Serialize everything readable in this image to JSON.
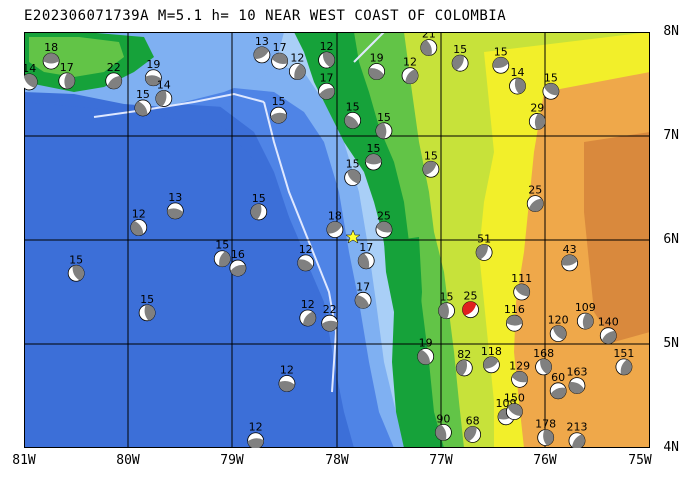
{
  "header": {
    "title": "E202306071739A M=5.1 h= 10 NEAR WEST COAST OF COLOMBIA"
  },
  "axes": {
    "lat_labels": [
      "8N",
      "7N",
      "6N",
      "5N",
      "4N"
    ],
    "lon_labels": [
      "81W",
      "80W",
      "79W",
      "78W",
      "77W",
      "76W",
      "75W"
    ]
  },
  "colors": {
    "deep_ocean": "#3c6fd8",
    "mid_ocean": "#4f84e6",
    "shelf": "#7fb0f2",
    "shallow": "#a9cff7",
    "lowland": "#16a23a",
    "green2": "#62c447",
    "yellowgreen": "#c7e23a",
    "yellow": "#f2ef2a",
    "orange": "#efa84a",
    "brown": "#d9893d",
    "event_star": "#ffff33",
    "target_beachball": "#e02020"
  },
  "events": [
    {
      "label": "18",
      "lon": -80.74,
      "lat": 7.72
    },
    {
      "label": "14",
      "lon": -80.95,
      "lat": 7.52
    },
    {
      "label": "17",
      "lon": -80.59,
      "lat": 7.53
    },
    {
      "label": "22",
      "lon": -80.14,
      "lat": 7.53
    },
    {
      "label": "19",
      "lon": -79.76,
      "lat": 7.56
    },
    {
      "label": "15",
      "lon": -79.86,
      "lat": 7.27
    },
    {
      "label": "14",
      "lon": -79.66,
      "lat": 7.36
    },
    {
      "label": "13",
      "lon": -78.72,
      "lat": 7.78
    },
    {
      "label": "17",
      "lon": -78.55,
      "lat": 7.72
    },
    {
      "label": "12",
      "lon": -78.1,
      "lat": 7.73
    },
    {
      "label": "12",
      "lon": -78.38,
      "lat": 7.62
    },
    {
      "label": "17",
      "lon": -78.1,
      "lat": 7.43
    },
    {
      "label": "19",
      "lon": -77.62,
      "lat": 7.62
    },
    {
      "label": "21",
      "lon": -77.12,
      "lat": 7.85
    },
    {
      "label": "15",
      "lon": -76.82,
      "lat": 7.7
    },
    {
      "label": "15",
      "lon": -76.43,
      "lat": 7.68
    },
    {
      "label": "15",
      "lon": -75.95,
      "lat": 7.43
    },
    {
      "label": "14",
      "lon": -76.27,
      "lat": 7.48
    },
    {
      "label": "12",
      "lon": -77.3,
      "lat": 7.58
    },
    {
      "label": "15",
      "lon": -78.56,
      "lat": 7.2
    },
    {
      "label": "15",
      "lon": -77.85,
      "lat": 7.15
    },
    {
      "label": "15",
      "lon": -77.55,
      "lat": 7.05
    },
    {
      "label": "15",
      "lon": -77.1,
      "lat": 6.68
    },
    {
      "label": "15",
      "lon": -77.65,
      "lat": 6.75
    },
    {
      "label": "15",
      "lon": -77.85,
      "lat": 6.6
    },
    {
      "label": "29",
      "lon": -76.08,
      "lat": 7.14
    },
    {
      "label": "25",
      "lon": -76.1,
      "lat": 6.35
    },
    {
      "label": "13",
      "lon": -79.55,
      "lat": 6.28
    },
    {
      "label": "12",
      "lon": -79.9,
      "lat": 6.12
    },
    {
      "label": "15",
      "lon": -78.75,
      "lat": 6.27
    },
    {
      "label": "18",
      "lon": -78.02,
      "lat": 6.1
    },
    {
      "label": "25",
      "lon": -77.55,
      "lat": 6.1
    },
    {
      "label": "15",
      "lon": -80.5,
      "lat": 5.68
    },
    {
      "label": "15",
      "lon": -79.1,
      "lat": 5.82
    },
    {
      "label": "16",
      "lon": -78.95,
      "lat": 5.73
    },
    {
      "label": "12",
      "lon": -78.3,
      "lat": 5.78
    },
    {
      "label": "17",
      "lon": -77.72,
      "lat": 5.8
    },
    {
      "label": "51",
      "lon": -76.59,
      "lat": 5.88
    },
    {
      "label": "43",
      "lon": -75.77,
      "lat": 5.78
    },
    {
      "label": "111",
      "lon": -76.23,
      "lat": 5.5
    },
    {
      "label": "15",
      "lon": -79.82,
      "lat": 5.3
    },
    {
      "label": "12",
      "lon": -78.28,
      "lat": 5.25
    },
    {
      "label": "22",
      "lon": -78.07,
      "lat": 5.2
    },
    {
      "label": "17",
      "lon": -77.75,
      "lat": 5.42
    },
    {
      "label": "15",
      "lon": -76.95,
      "lat": 5.32
    },
    {
      "label": "25",
      "lon": -76.72,
      "lat": 5.33
    },
    {
      "label": "116",
      "lon": -76.3,
      "lat": 5.2
    },
    {
      "label": "120",
      "lon": -75.88,
      "lat": 5.1
    },
    {
      "label": "109",
      "lon": -75.62,
      "lat": 5.22
    },
    {
      "label": "140",
      "lon": -75.4,
      "lat": 5.08
    },
    {
      "label": "12",
      "lon": -78.48,
      "lat": 4.62
    },
    {
      "label": "19",
      "lon": -77.15,
      "lat": 4.88
    },
    {
      "label": "82",
      "lon": -76.78,
      "lat": 4.77
    },
    {
      "label": "118",
      "lon": -76.52,
      "lat": 4.8
    },
    {
      "label": "129",
      "lon": -76.25,
      "lat": 4.66
    },
    {
      "label": "168",
      "lon": -76.02,
      "lat": 4.78
    },
    {
      "label": "151",
      "lon": -75.25,
      "lat": 4.78
    },
    {
      "label": "60",
      "lon": -75.88,
      "lat": 4.55
    },
    {
      "label": "163",
      "lon": -75.7,
      "lat": 4.6
    },
    {
      "label": "90",
      "lon": -76.98,
      "lat": 4.15
    },
    {
      "label": "68",
      "lon": -76.7,
      "lat": 4.13
    },
    {
      "label": "109",
      "lon": -76.38,
      "lat": 4.3
    },
    {
      "label": "150",
      "lon": -76.3,
      "lat": 4.35
    },
    {
      "label": "178",
      "lon": -76.0,
      "lat": 4.1
    },
    {
      "label": "213",
      "lon": -75.7,
      "lat": 4.07
    },
    {
      "label": "12",
      "lon": -78.78,
      "lat": 4.07
    }
  ]
}
